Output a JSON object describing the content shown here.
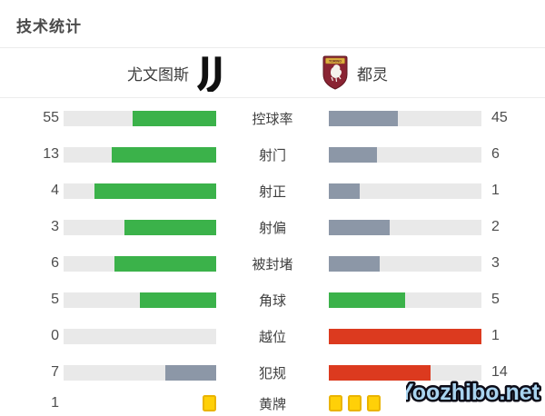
{
  "title": "技术统计",
  "header": {
    "home_team": "尤文图斯",
    "away_team": "都灵",
    "home_logo_icon": "juventus-logo",
    "away_logo_icon": "torino-logo",
    "torino_banner_text": "TORINO"
  },
  "palette": {
    "green": "#3bb24a",
    "slate": "#8c97a7",
    "red": "#dc3a1f",
    "yellow": "#ffd008",
    "yellow_border": "#eab400",
    "track": "#e9e9e9",
    "maroon": "#8a2433",
    "gold": "#dcaf3f",
    "watermark_fill": "#a9d4f0",
    "watermark_stroke": "#0c0c18"
  },
  "chart_data": {
    "type": "bar",
    "orientation": "horizontal-paired",
    "title": "技术统计",
    "categories": [
      "控球率",
      "射门",
      "射正",
      "射偏",
      "被封堵",
      "角球",
      "越位",
      "犯规",
      "黄牌"
    ],
    "series": [
      {
        "name": "尤文图斯",
        "values": [
          55,
          13,
          4,
          3,
          6,
          5,
          0,
          7,
          1
        ]
      },
      {
        "name": "都灵",
        "values": [
          45,
          6,
          1,
          2,
          3,
          5,
          1,
          14,
          3
        ]
      }
    ],
    "value_scale": "each pair fills bars proportionally to value/(home+away)",
    "home_bar_colors": [
      "green",
      "green",
      "green",
      "green",
      "green",
      "green",
      "none",
      "slate",
      "cards"
    ],
    "away_bar_colors": [
      "slate",
      "slate",
      "slate",
      "slate",
      "slate",
      "green",
      "red",
      "red",
      "cards"
    ],
    "cards_row_index": 8,
    "away_value_hidden_by_watermark_row_index": 8,
    "legend_position": "top (team names with crests)",
    "grid": false
  },
  "watermark": "Yoozhibo.net"
}
